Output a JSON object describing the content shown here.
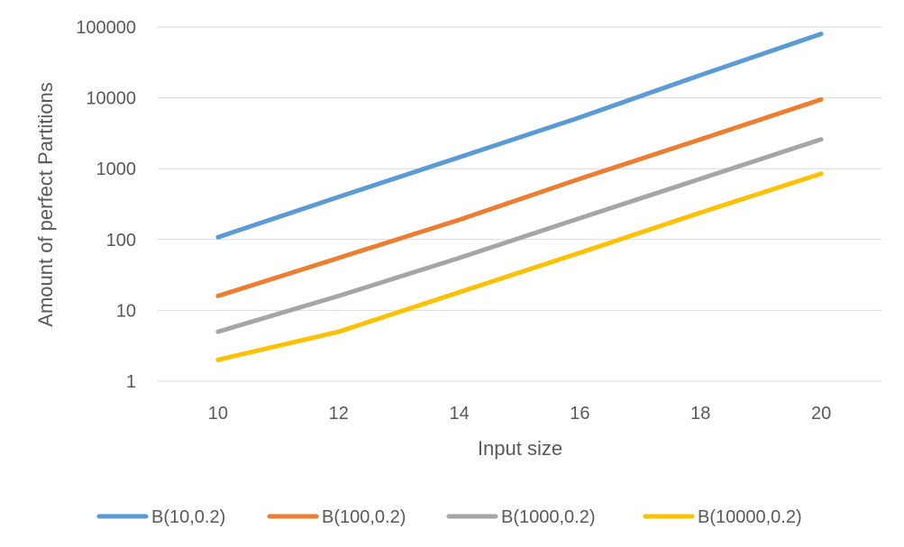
{
  "chart_data": {
    "type": "line",
    "title": "",
    "xlabel": "Input size",
    "ylabel": "Amount of perfect Partitions",
    "y_scale": "log",
    "ylim": [
      1,
      100000
    ],
    "xlim": [
      9,
      21
    ],
    "x_ticks": [
      10,
      12,
      14,
      16,
      18,
      20
    ],
    "y_ticks": [
      1,
      10,
      100,
      1000,
      10000,
      100000
    ],
    "y_tick_labels": [
      "1",
      "10",
      "100",
      "1000",
      "10000",
      "100000"
    ],
    "x": [
      10,
      12,
      14,
      16,
      18,
      20
    ],
    "grid": true,
    "legend_position": "bottom",
    "series": [
      {
        "name": "B(10,0.2)",
        "color": "#5b9bd5",
        "values": [
          108,
          400,
          1450,
          5300,
          21000,
          80000
        ]
      },
      {
        "name": "B(100,0.2)",
        "color": "#ed7d31",
        "values": [
          16,
          55,
          190,
          720,
          2600,
          9500
        ]
      },
      {
        "name": "B(1000,0.2)",
        "color": "#a5a5a5",
        "values": [
          5,
          16,
          55,
          200,
          720,
          2600
        ]
      },
      {
        "name": "B(10000,0.2)",
        "color": "#ffc000",
        "values": [
          2,
          5,
          18,
          65,
          240,
          850
        ]
      }
    ]
  }
}
